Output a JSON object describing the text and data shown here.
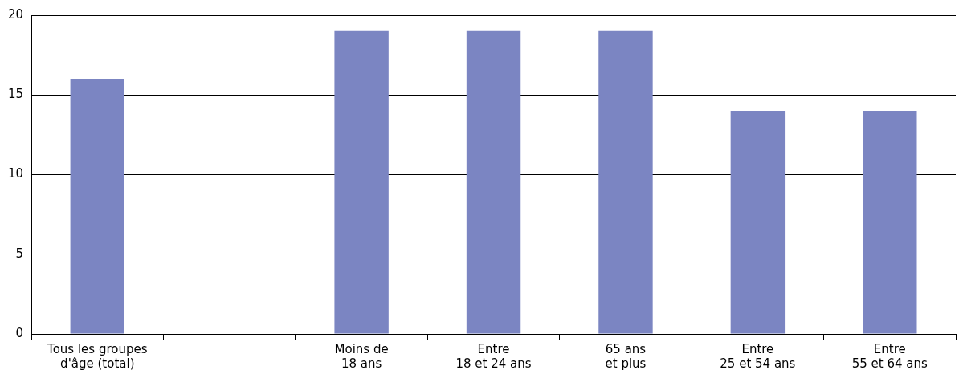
{
  "chart_data": {
    "type": "bar",
    "categories": [
      "Tous les groupes\nd'âge (total)",
      null,
      "Moins de\n18 ans",
      "Entre\n18 et 24 ans",
      "65 ans\net plus",
      "Entre\n25 et 54 ans",
      "Entre\n55 et 64 ans"
    ],
    "values": [
      16,
      null,
      19,
      19,
      19,
      14,
      14
    ],
    "color": "#7b85c2",
    "ylim": [
      0,
      20
    ],
    "yticks": [
      0,
      5,
      10,
      15,
      20
    ],
    "grid": "y",
    "legend": false
  }
}
